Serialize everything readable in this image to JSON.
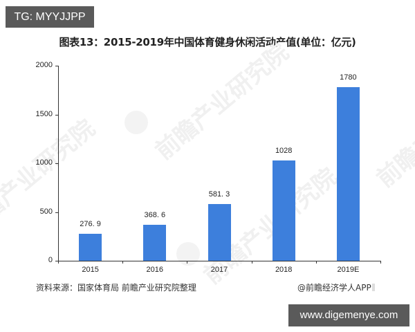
{
  "overlay": {
    "top_tag": "TG: MYYJJPP",
    "bottom_tag": "www.digemenye.com"
  },
  "watermark": {
    "text": "前瞻产业研究院"
  },
  "chart_data": {
    "type": "bar",
    "title": "图表13：2015-2019年中国体育健身休闲活动产值(单位：亿元)",
    "xlabel": "",
    "ylabel": "",
    "categories": [
      "2015",
      "2016",
      "2017",
      "2018",
      "2019E"
    ],
    "values": [
      276.9,
      368.6,
      581.3,
      1028,
      1780
    ],
    "value_labels": [
      "276. 9",
      "368. 6",
      "581. 3",
      "1028",
      "1780"
    ],
    "ylim": [
      0,
      2000
    ],
    "yticks": [
      0,
      500,
      1000,
      1500,
      2000
    ],
    "ytick_labels": [
      "0",
      "500",
      "1000",
      "1500",
      "2000"
    ],
    "grid": false,
    "legend": null,
    "bar_color": "#3d7fdc"
  },
  "footer": {
    "source": "资料来源：国家体育局 前瞻产业研究院整理",
    "credit": "@前瞻经济学人APP"
  }
}
